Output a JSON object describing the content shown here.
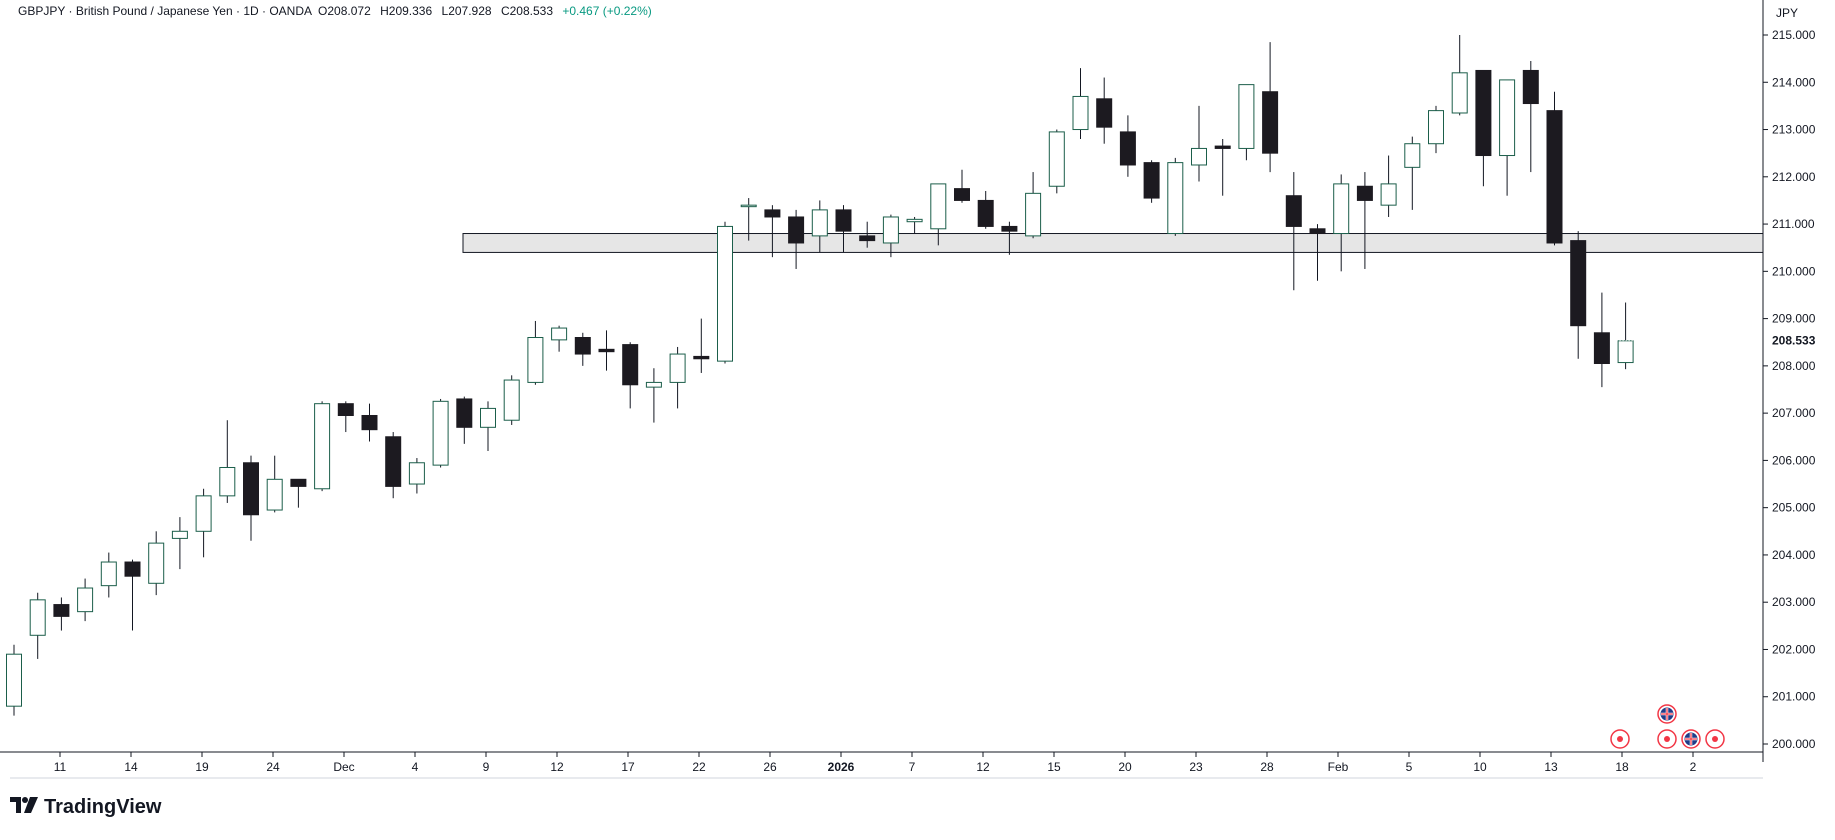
{
  "header": {
    "symbol": "GBPJPY",
    "name": "British Pound / Japanese Yen",
    "interval": "1D",
    "source": "OANDA",
    "o_label": "O",
    "o": "208.072",
    "h_label": "H",
    "h": "209.336",
    "l_label": "L",
    "l": "207.928",
    "c_label": "C",
    "c": "208.533",
    "change": "+0.467 (+0.22%)",
    "sep": "·"
  },
  "price_axis": {
    "currency": "JPY",
    "ticks": [
      "215.000",
      "214.000",
      "213.000",
      "212.000",
      "211.000",
      "210.000",
      "209.000",
      "208.000",
      "207.000",
      "206.000",
      "205.000",
      "204.000",
      "203.000",
      "202.000",
      "201.000",
      "200.000"
    ],
    "last_price": "208.533"
  },
  "time_axis": {
    "ticks": [
      {
        "label": "11",
        "bold": false
      },
      {
        "label": "14",
        "bold": false
      },
      {
        "label": "19",
        "bold": false
      },
      {
        "label": "24",
        "bold": false
      },
      {
        "label": "Dec",
        "bold": false
      },
      {
        "label": "4",
        "bold": false
      },
      {
        "label": "9",
        "bold": false
      },
      {
        "label": "12",
        "bold": false
      },
      {
        "label": "17",
        "bold": false
      },
      {
        "label": "22",
        "bold": false
      },
      {
        "label": "26",
        "bold": false
      },
      {
        "label": "2026",
        "bold": true
      },
      {
        "label": "7",
        "bold": false
      },
      {
        "label": "12",
        "bold": false
      },
      {
        "label": "15",
        "bold": false
      },
      {
        "label": "20",
        "bold": false
      },
      {
        "label": "23",
        "bold": false
      },
      {
        "label": "28",
        "bold": false
      },
      {
        "label": "Feb",
        "bold": false
      },
      {
        "label": "5",
        "bold": false
      },
      {
        "label": "10",
        "bold": false
      },
      {
        "label": "13",
        "bold": false
      },
      {
        "label": "18",
        "bold": false
      },
      {
        "label": "2",
        "bold": false
      }
    ]
  },
  "colors": {
    "up_fill": "#ffffff",
    "up_border": "#1b5e4a",
    "down_fill": "#1c1a20",
    "down_border": "#1c1a20",
    "wick": "#131722",
    "zone_fill": "#e6e6e6",
    "zone_border": "#131722",
    "axis_line": "#131722",
    "event_red": "#f23645"
  },
  "brand": {
    "name": "TradingView"
  },
  "chart_data": {
    "type": "candlestick",
    "title": "GBPJPY · British Pound / Japanese Yen · 1D · OANDA",
    "xlabel": "",
    "ylabel": "",
    "ylim": [
      199.9,
      215.5
    ],
    "grid": false,
    "zone": {
      "from": 210.4,
      "to": 210.8
    },
    "candles": [
      {
        "o": 200.8,
        "h": 202.1,
        "l": 200.6,
        "c": 201.9
      },
      {
        "o": 202.3,
        "h": 203.2,
        "l": 201.8,
        "c": 203.05
      },
      {
        "o": 202.95,
        "h": 203.1,
        "l": 202.4,
        "c": 202.7
      },
      {
        "o": 202.8,
        "h": 203.5,
        "l": 202.6,
        "c": 203.3
      },
      {
        "o": 203.35,
        "h": 204.05,
        "l": 203.1,
        "c": 203.85
      },
      {
        "o": 203.85,
        "h": 203.9,
        "l": 202.4,
        "c": 203.55
      },
      {
        "o": 203.4,
        "h": 204.5,
        "l": 203.15,
        "c": 204.25
      },
      {
        "o": 204.35,
        "h": 204.8,
        "l": 203.7,
        "c": 204.5
      },
      {
        "o": 204.5,
        "h": 205.4,
        "l": 203.95,
        "c": 205.25
      },
      {
        "o": 205.25,
        "h": 206.85,
        "l": 205.1,
        "c": 205.85
      },
      {
        "o": 205.95,
        "h": 206.1,
        "l": 204.3,
        "c": 204.85
      },
      {
        "o": 204.95,
        "h": 206.1,
        "l": 204.9,
        "c": 205.6
      },
      {
        "o": 205.6,
        "h": 205.6,
        "l": 205.0,
        "c": 205.45
      },
      {
        "o": 205.4,
        "h": 207.25,
        "l": 205.35,
        "c": 207.2
      },
      {
        "o": 207.2,
        "h": 207.25,
        "l": 206.6,
        "c": 206.95
      },
      {
        "o": 206.95,
        "h": 207.2,
        "l": 206.4,
        "c": 206.65
      },
      {
        "o": 206.5,
        "h": 206.6,
        "l": 205.2,
        "c": 205.45
      },
      {
        "o": 205.5,
        "h": 206.05,
        "l": 205.3,
        "c": 205.95
      },
      {
        "o": 205.9,
        "h": 207.3,
        "l": 205.85,
        "c": 207.25
      },
      {
        "o": 207.3,
        "h": 207.35,
        "l": 206.35,
        "c": 206.7
      },
      {
        "o": 206.7,
        "h": 207.25,
        "l": 206.2,
        "c": 207.1
      },
      {
        "o": 206.85,
        "h": 207.8,
        "l": 206.75,
        "c": 207.7
      },
      {
        "o": 207.65,
        "h": 208.95,
        "l": 207.6,
        "c": 208.6
      },
      {
        "o": 208.55,
        "h": 208.85,
        "l": 208.3,
        "c": 208.8
      },
      {
        "o": 208.6,
        "h": 208.7,
        "l": 208.0,
        "c": 208.25
      },
      {
        "o": 208.35,
        "h": 208.75,
        "l": 207.9,
        "c": 208.3
      },
      {
        "o": 208.45,
        "h": 208.5,
        "l": 207.1,
        "c": 207.6
      },
      {
        "o": 207.55,
        "h": 207.95,
        "l": 206.8,
        "c": 207.65
      },
      {
        "o": 207.65,
        "h": 208.4,
        "l": 207.1,
        "c": 208.25
      },
      {
        "o": 208.2,
        "h": 209.0,
        "l": 207.85,
        "c": 208.15
      },
      {
        "o": 208.1,
        "h": 211.05,
        "l": 208.05,
        "c": 210.95
      },
      {
        "o": 211.4,
        "h": 211.55,
        "l": 210.65,
        "c": 211.4
      },
      {
        "o": 211.3,
        "h": 211.4,
        "l": 210.3,
        "c": 211.15
      },
      {
        "o": 211.15,
        "h": 211.3,
        "l": 210.05,
        "c": 210.6
      },
      {
        "o": 210.75,
        "h": 211.5,
        "l": 210.4,
        "c": 211.3
      },
      {
        "o": 211.3,
        "h": 211.4,
        "l": 210.4,
        "c": 210.85
      },
      {
        "o": 210.75,
        "h": 211.05,
        "l": 210.5,
        "c": 210.65
      },
      {
        "o": 210.6,
        "h": 211.2,
        "l": 210.3,
        "c": 211.15
      },
      {
        "o": 211.05,
        "h": 211.15,
        "l": 210.8,
        "c": 211.1
      },
      {
        "o": 210.9,
        "h": 211.85,
        "l": 210.55,
        "c": 211.85
      },
      {
        "o": 211.75,
        "h": 212.15,
        "l": 211.45,
        "c": 211.5
      },
      {
        "o": 211.5,
        "h": 211.7,
        "l": 210.9,
        "c": 210.95
      },
      {
        "o": 210.95,
        "h": 211.05,
        "l": 210.35,
        "c": 210.85
      },
      {
        "o": 210.75,
        "h": 212.1,
        "l": 210.7,
        "c": 211.65
      },
      {
        "o": 211.8,
        "h": 213.0,
        "l": 211.65,
        "c": 212.95
      },
      {
        "o": 213.0,
        "h": 214.3,
        "l": 212.8,
        "c": 213.7
      },
      {
        "o": 213.65,
        "h": 214.1,
        "l": 212.7,
        "c": 213.05
      },
      {
        "o": 212.95,
        "h": 213.3,
        "l": 212.0,
        "c": 212.25
      },
      {
        "o": 212.3,
        "h": 212.35,
        "l": 211.45,
        "c": 211.55
      },
      {
        "o": 210.8,
        "h": 212.4,
        "l": 210.75,
        "c": 212.3
      },
      {
        "o": 212.25,
        "h": 213.5,
        "l": 211.9,
        "c": 212.6
      },
      {
        "o": 212.65,
        "h": 212.8,
        "l": 211.6,
        "c": 212.6
      },
      {
        "o": 212.6,
        "h": 213.95,
        "l": 212.35,
        "c": 213.95
      },
      {
        "o": 213.8,
        "h": 214.85,
        "l": 212.1,
        "c": 212.5
      },
      {
        "o": 211.6,
        "h": 212.1,
        "l": 209.6,
        "c": 210.95
      },
      {
        "o": 210.9,
        "h": 211.0,
        "l": 209.8,
        "c": 210.8
      },
      {
        "o": 210.8,
        "h": 212.05,
        "l": 210.0,
        "c": 211.85
      },
      {
        "o": 211.8,
        "h": 212.1,
        "l": 210.05,
        "c": 211.5
      },
      {
        "o": 211.4,
        "h": 212.45,
        "l": 211.15,
        "c": 211.85
      },
      {
        "o": 212.2,
        "h": 212.85,
        "l": 211.3,
        "c": 212.7
      },
      {
        "o": 212.7,
        "h": 213.5,
        "l": 212.5,
        "c": 213.4
      },
      {
        "o": 213.35,
        "h": 215.0,
        "l": 213.3,
        "c": 214.2
      },
      {
        "o": 214.25,
        "h": 214.25,
        "l": 211.8,
        "c": 212.45
      },
      {
        "o": 212.45,
        "h": 214.05,
        "l": 211.6,
        "c": 214.05
      },
      {
        "o": 214.25,
        "h": 214.45,
        "l": 212.1,
        "c": 213.55
      },
      {
        "o": 213.4,
        "h": 213.8,
        "l": 210.55,
        "c": 210.6
      },
      {
        "o": 210.65,
        "h": 210.85,
        "l": 208.15,
        "c": 208.85
      },
      {
        "o": 208.7,
        "h": 209.55,
        "l": 207.55,
        "c": 208.05
      },
      {
        "o": 208.07,
        "h": 209.34,
        "l": 207.93,
        "c": 208.53
      }
    ]
  }
}
